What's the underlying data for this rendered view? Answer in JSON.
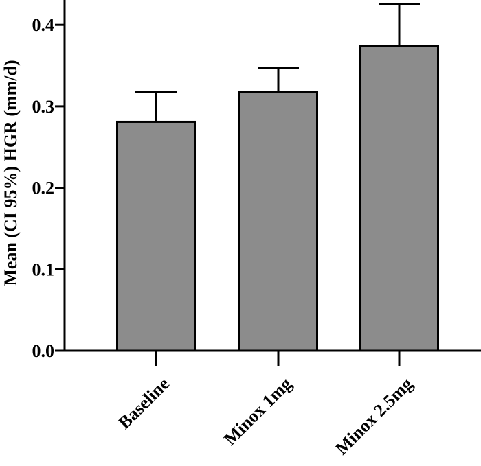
{
  "chart_data": {
    "type": "bar",
    "title": "",
    "xlabel": "",
    "ylabel": "Mean (CI 95%) HGR (mm/d)",
    "categories": [
      "Baseline",
      "Minox 1mg",
      "Minox 2.5mg"
    ],
    "values": [
      0.281,
      0.318,
      0.374
    ],
    "error_upper": [
      0.318,
      0.347,
      0.425
    ],
    "ylim": [
      0.0,
      0.44
    ],
    "yticks": [
      "0.0",
      "0.1",
      "0.2",
      "0.3",
      "0.4"
    ],
    "bar_color": "#8c8c8c",
    "edge_color": "#000000",
    "grid": false,
    "legend": "none"
  }
}
